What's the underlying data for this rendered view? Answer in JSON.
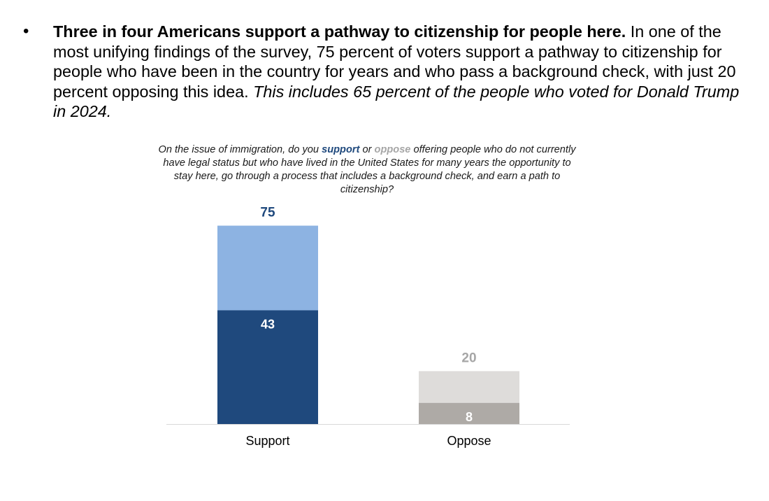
{
  "bullet": {
    "symbol": "•",
    "lead": "Three in four Americans support a pathway to citizenship for people here.",
    "body": " In one of the most unifying findings of the survey, 75 percent of voters support a pathway to citizenship for people who have been in the country for years and who pass a background check, with just 20 percent opposing this idea. ",
    "emphasis": "This includes 65 percent of the people who voted for Donald Trump in 2024."
  },
  "question": {
    "part1": "On the issue of immigration, do you ",
    "support_word": "support",
    "part2": " or ",
    "oppose_word": "oppose",
    "part3": " offering people who do not currently have legal status but who have lived in the United States for many years the opportunity to stay here, go through a process that includes a background check, and earn a path to citizenship?"
  },
  "chart_data": {
    "type": "bar",
    "stacked": true,
    "title": "On the issue of immigration, do you support or oppose offering people who do not currently have legal status but who have lived in the United States for many years the opportunity to stay here, go through a process that includes a background check, and earn a path to citizenship?",
    "categories": [
      "Support",
      "Oppose"
    ],
    "totals": [
      75,
      20
    ],
    "strong_values": [
      43,
      8
    ],
    "colors": {
      "support_strong": "#1f497d",
      "support_total": "#8db3e2",
      "oppose_strong": "#aeaaa6",
      "oppose_total": "#dedcda",
      "support_label": "#1f497d",
      "oppose_label": "#a6a6a6"
    },
    "ylim": [
      0,
      80
    ],
    "xlabel": "",
    "ylabel": ""
  }
}
